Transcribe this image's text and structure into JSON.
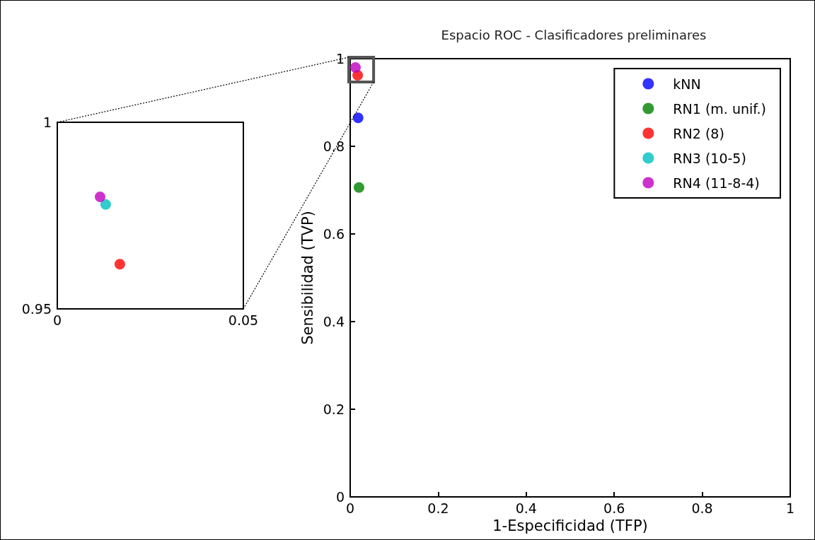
{
  "chart_data": [
    {
      "type": "scatter",
      "title": "Espacio ROC - Clasificadores preliminares",
      "xlabel": "1-Especificidad (TFP)",
      "ylabel": "Sensibilidad (TVP)",
      "xlim": [
        0,
        1
      ],
      "ylim": [
        0,
        1
      ],
      "xticks": [
        0,
        0.2,
        0.4,
        0.6,
        0.8,
        1
      ],
      "yticks": [
        0,
        0.2,
        0.4,
        0.6,
        0.8,
        1
      ],
      "grid": false,
      "legend": "top right",
      "marker": "circle",
      "series": [
        {
          "name": "kNN",
          "color": "#0000ff",
          "x": [
            0.018
          ],
          "values": [
            0.865
          ]
        },
        {
          "name": "RN1 (m. unif.)",
          "color": "#008000",
          "x": [
            0.02
          ],
          "values": [
            0.706
          ]
        },
        {
          "name": "RN2 (8)",
          "color": "#ff0000",
          "x": [
            0.017
          ],
          "values": [
            0.962
          ]
        },
        {
          "name": "RN3 (10-5)",
          "color": "#00bfbf",
          "x": [
            null
          ],
          "values": [
            null
          ]
        },
        {
          "name": "RN4 (11-8-4)",
          "color": "#bf00bf",
          "x": [
            0.012
          ],
          "values": [
            0.98
          ]
        }
      ]
    },
    {
      "type": "scatter",
      "xlim": [
        0,
        0.05
      ],
      "ylim": [
        0.95,
        1
      ],
      "xticks": [
        0,
        0.05
      ],
      "yticks": [
        0.95,
        1
      ],
      "grid": false,
      "marker": "circle",
      "series": [
        {
          "color": "#ff0000",
          "x": [
            0.0168
          ],
          "values": [
            0.962
          ]
        },
        {
          "color": "#00bfbf",
          "x": [
            0.013
          ],
          "values": [
            0.978
          ]
        },
        {
          "color": "#bf00bf",
          "x": [
            0.0115
          ],
          "values": [
            0.98
          ]
        }
      ]
    }
  ]
}
